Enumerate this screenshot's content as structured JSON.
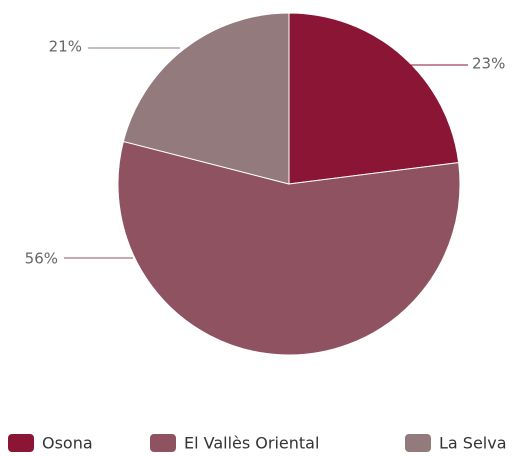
{
  "chart_data": {
    "type": "pie",
    "categories": [
      "Osona",
      "El Vallès Oriental",
      "La Selva"
    ],
    "values": [
      23,
      56,
      21
    ],
    "value_labels": [
      "23%",
      "56%",
      "21%"
    ],
    "colors": [
      "#8b1535",
      "#8e5261",
      "#937a7d"
    ],
    "legend": "bottom"
  }
}
